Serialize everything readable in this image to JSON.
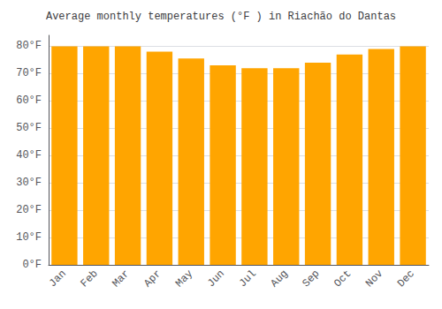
{
  "chart_data": {
    "type": "bar",
    "title": "Average monthly temperatures (°F ) in Riachão do Dantas",
    "categories": [
      "Jan",
      "Feb",
      "Mar",
      "Apr",
      "May",
      "Jun",
      "Jul",
      "Aug",
      "Sep",
      "Oct",
      "Nov",
      "Dec"
    ],
    "values": [
      80,
      80,
      80,
      78,
      75.5,
      73,
      72,
      72,
      74,
      77,
      79,
      80
    ],
    "color": "#FFA500",
    "ylim": [
      0,
      84
    ],
    "yticks": [
      {
        "value": 0,
        "label": "0°F"
      },
      {
        "value": 10,
        "label": "10°F"
      },
      {
        "value": 20,
        "label": "20°F"
      },
      {
        "value": 30,
        "label": "30°F"
      },
      {
        "value": 40,
        "label": "40°F"
      },
      {
        "value": 50,
        "label": "50°F"
      },
      {
        "value": 60,
        "label": "60°F"
      },
      {
        "value": 70,
        "label": "70°F"
      },
      {
        "value": 80,
        "label": "80°F"
      }
    ],
    "grid": true
  }
}
